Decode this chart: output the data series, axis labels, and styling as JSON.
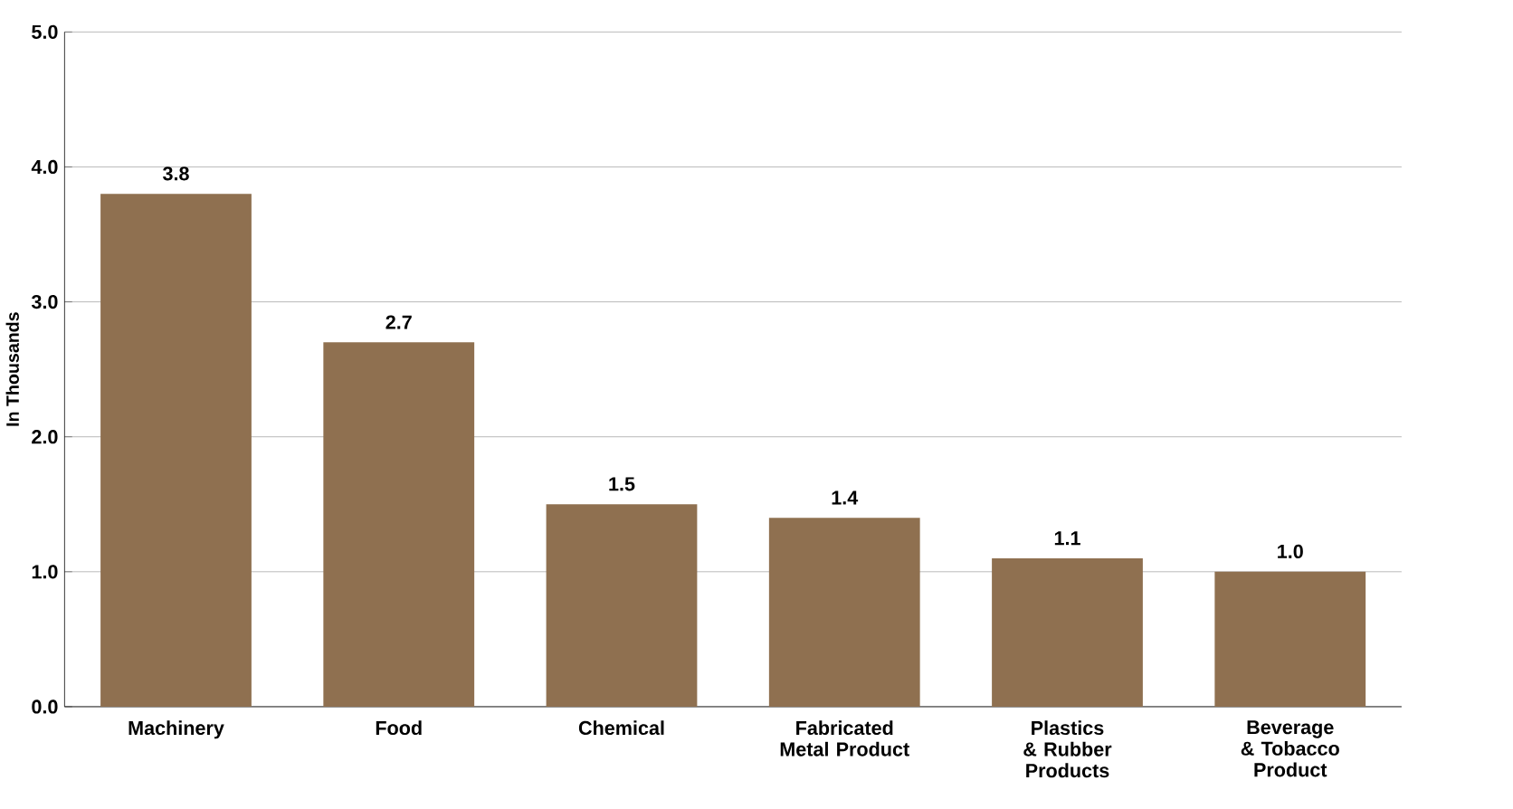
{
  "chart_data": {
    "type": "bar",
    "ylabel": "In Thousands",
    "categories": [
      "Machinery",
      "Food",
      "Chemical",
      "Fabricated Metal Product",
      "Plastics & Rubber Products",
      "Beverage & Tobacco Product"
    ],
    "values": [
      3.8,
      2.7,
      1.5,
      1.4,
      1.1,
      1.0
    ],
    "value_labels": [
      "3.8",
      "2.7",
      "1.5",
      "1.4",
      "1.1",
      "1.0"
    ],
    "color": "#8f7050",
    "ylim": [
      0,
      5
    ],
    "yticks": [
      {
        "value": 0,
        "label": "0.0"
      },
      {
        "value": 1,
        "label": "1.0"
      },
      {
        "value": 2,
        "label": "2.0"
      },
      {
        "value": 3,
        "label": "3.0"
      },
      {
        "value": 4,
        "label": "4.0"
      },
      {
        "value": 5,
        "label": "5.0"
      }
    ],
    "grid": "y"
  }
}
